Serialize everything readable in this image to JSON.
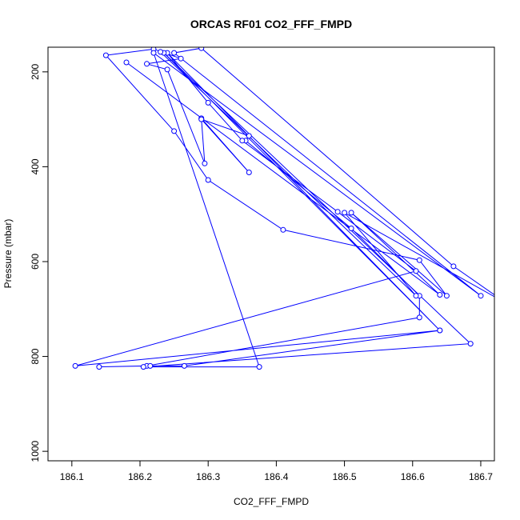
{
  "chart_data": {
    "type": "line",
    "title": "ORCAS RF01 CO2_FFF_FMPD",
    "xlabel": "CO2_FFF_FMPD",
    "ylabel": "Pressure (mbar)",
    "xlim": [
      186.065,
      186.72
    ],
    "ylim": [
      1020,
      148
    ],
    "y_reversed": true,
    "x_ticks": [
      "186.1",
      "186.2",
      "186.3",
      "186.4",
      "186.5",
      "186.6",
      "186.7"
    ],
    "y_ticks": [
      "200",
      "400",
      "600",
      "800",
      "1000"
    ],
    "grid": false,
    "marker": "open-circle",
    "series": [
      {
        "color": "#0000ff",
        "x": [
          186.18,
          186.64,
          186.51,
          186.65,
          186.61,
          186.41,
          186.3,
          186.25,
          186.15,
          186.22,
          186.26,
          186.21,
          186.24,
          186.295,
          186.29,
          186.36,
          186.29,
          186.36,
          186.355,
          186.51,
          186.61,
          186.61,
          186.21,
          186.14,
          186.215,
          186.265,
          186.64,
          186.24,
          186.3,
          186.35,
          186.49,
          186.605,
          186.105,
          186.64,
          186.235,
          186.685,
          186.205,
          186.375,
          186.22,
          186.7,
          186.25,
          186.29,
          186.66,
          186.74,
          186.5,
          186.605,
          186.23
        ],
        "y": [
          180,
          670,
          497,
          672,
          597,
          533,
          428,
          325,
          165,
          152,
          172,
          183,
          195,
          393,
          298,
          412,
          300,
          335,
          345,
          530,
          672,
          718,
          820,
          822,
          820,
          820,
          745,
          160,
          265,
          345,
          495,
          620,
          820,
          745,
          160,
          773,
          822,
          822,
          160,
          672,
          160,
          150,
          610,
          690,
          497,
          672,
          158
        ]
      }
    ]
  }
}
